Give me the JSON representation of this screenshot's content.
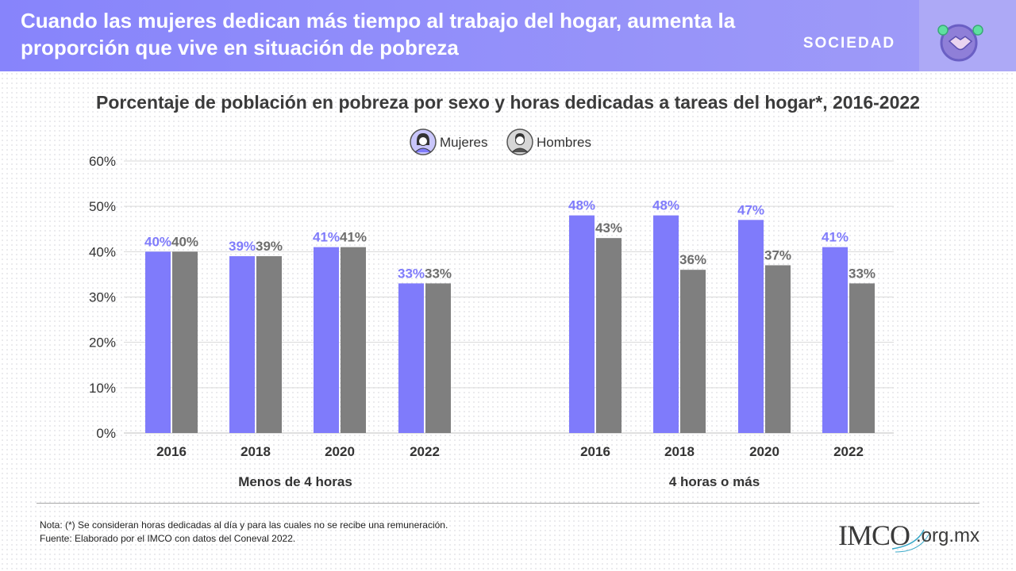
{
  "header": {
    "headline": "Cuando las mujeres dedican más tiempo al trabajo del hogar, aumenta la proporción que vive en situación de pobreza",
    "section": "SOCIEDAD",
    "section_icon": "handshake-heart-icon"
  },
  "legend": {
    "women_label": "Mujeres",
    "men_label": "Hombres",
    "women_icon": "woman-avatar-icon",
    "men_icon": "man-avatar-icon"
  },
  "chart_data": {
    "type": "bar",
    "title": "Porcentaje de población en pobreza por sexo y horas dedicadas a tareas del hogar*, 2016-2022",
    "y_ticks": [
      "60%",
      "50%",
      "40%",
      "30%",
      "20%",
      "10%",
      "0%"
    ],
    "ylim": [
      0,
      60
    ],
    "grid": true,
    "legend_position": "top-center",
    "colors": {
      "Mujeres": "#7f7bfb",
      "Hombres": "#7f7f7f"
    },
    "groups": [
      {
        "label": "Menos de 4 horas",
        "categories": [
          "2016",
          "2018",
          "2020",
          "2022"
        ],
        "series": [
          {
            "name": "Mujeres",
            "values": [
              40,
              39,
              41,
              33
            ],
            "labels": [
              "40%",
              "39%",
              "41%",
              "33%"
            ]
          },
          {
            "name": "Hombres",
            "values": [
              40,
              39,
              41,
              33
            ],
            "labels": [
              "40%",
              "39%",
              "41%",
              "33%"
            ]
          }
        ]
      },
      {
        "label": "4 horas o más",
        "categories": [
          "2016",
          "2018",
          "2020",
          "2022"
        ],
        "series": [
          {
            "name": "Mujeres",
            "values": [
              48,
              48,
              47,
              41
            ],
            "labels": [
              "48%",
              "48%",
              "47%",
              "41%"
            ]
          },
          {
            "name": "Hombres",
            "values": [
              43,
              36,
              37,
              33
            ],
            "labels": [
              "43%",
              "36%",
              "37%",
              "33%"
            ]
          }
        ]
      }
    ]
  },
  "footer": {
    "note": "Nota: (*) Se consideran horas dedicadas al día y para las cuales no se recibe una remuneración.",
    "source": "Fuente: Elaborado por el IMCO con datos del Coneval 2022.",
    "logo_text": "IMCO",
    "logo_domain": ".org.mx"
  }
}
